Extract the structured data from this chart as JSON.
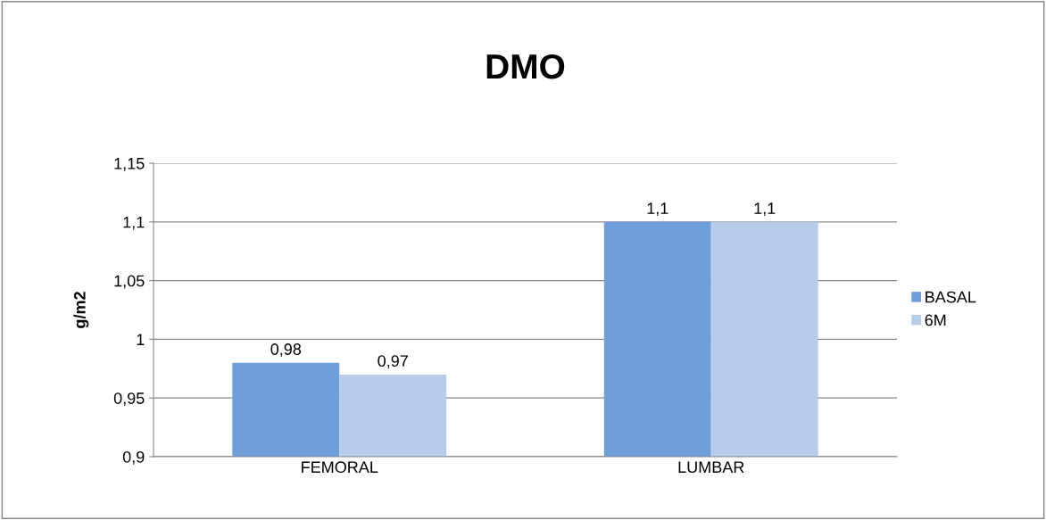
{
  "chart_data": {
    "type": "bar",
    "title": "DMO",
    "ylabel": "g/m2",
    "categories": [
      "FEMORAL",
      "LUMBAR"
    ],
    "series": [
      {
        "name": "BASAL",
        "color": "#6f9fdb",
        "values": [
          0.98,
          1.1
        ],
        "value_labels": [
          "0,98",
          "1,1"
        ]
      },
      {
        "name": "6M",
        "color": "#b7cdeb",
        "values": [
          0.97,
          1.1
        ],
        "value_labels": [
          "0,97",
          "1,1"
        ]
      }
    ],
    "ylim": [
      0.9,
      1.15
    ],
    "yticks": [
      {
        "value": 0.9,
        "label": "0,9"
      },
      {
        "value": 0.95,
        "label": "0,95"
      },
      {
        "value": 1,
        "label": "1"
      },
      {
        "value": 1.05,
        "label": "1,05"
      },
      {
        "value": 1.1,
        "label": "1,1"
      },
      {
        "value": 1.15,
        "label": "1,15"
      }
    ],
    "grid": "y",
    "legend": "right"
  }
}
